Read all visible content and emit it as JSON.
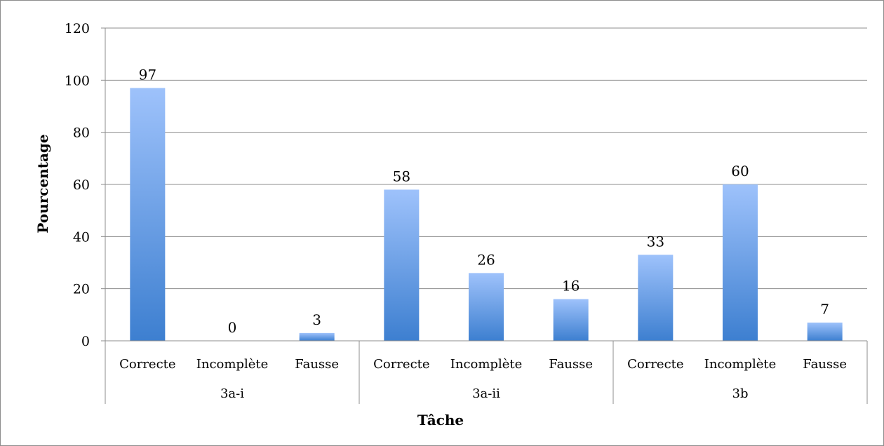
{
  "chart_data": {
    "type": "bar",
    "xlabel": "Tâche",
    "ylabel": "Pourcentage",
    "ylim": [
      0,
      120
    ],
    "yticks": [
      "0",
      "20",
      "40",
      "60",
      "80",
      "100",
      "120"
    ],
    "grid": true,
    "legend": "none",
    "groups": [
      {
        "name": "3a-i",
        "categories": [
          "Correcte",
          "Incomplète",
          "Fausse"
        ],
        "values": [
          97,
          0,
          3
        ]
      },
      {
        "name": "3a-ii",
        "categories": [
          "Correcte",
          "Incomplète",
          "Fausse"
        ],
        "values": [
          58,
          26,
          16
        ]
      },
      {
        "name": "3b",
        "categories": [
          "Correcte",
          "Incomplète",
          "Fausse"
        ],
        "values": [
          33,
          60,
          7
        ]
      }
    ],
    "colors": {
      "bar_top": "#9ec2fb",
      "bar_bottom": "#3d7fd0",
      "grid": "#8c8c8c",
      "axis": "#8c8c8c"
    }
  }
}
